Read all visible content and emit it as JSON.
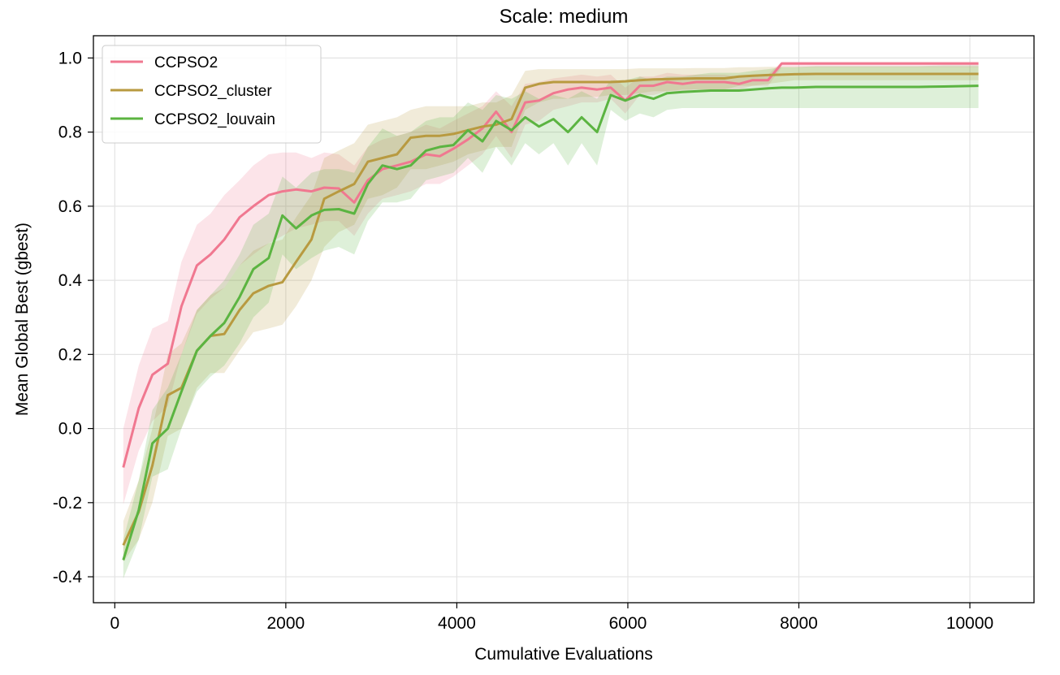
{
  "chart_data": {
    "type": "line",
    "title": "Scale: medium",
    "xlabel": "Cumulative Evaluations",
    "ylabel": "Mean Global Best (gbest)",
    "xlim": [
      -250,
      10750
    ],
    "ylim": [
      -0.47,
      1.06
    ],
    "xticks": [
      0,
      2000,
      4000,
      6000,
      8000,
      10000
    ],
    "yticks": [
      -0.4,
      -0.2,
      0.0,
      0.2,
      0.4,
      0.6,
      0.8,
      1.0
    ],
    "xtick_labels": [
      "0",
      "2000",
      "4000",
      "6000",
      "8000",
      "10000"
    ],
    "ytick_labels": [
      "-0.4",
      "-0.2",
      "0.0",
      "0.2",
      "0.4",
      "0.6",
      "0.8",
      "1.0"
    ],
    "grid": true,
    "legend_position": "top-left",
    "series": [
      {
        "name": "CCPSO2",
        "color": "#f07890",
        "x": [
          100,
          280,
          440,
          620,
          780,
          960,
          1120,
          1280,
          1460,
          1620,
          1800,
          1960,
          2120,
          2300,
          2450,
          2620,
          2800,
          2960,
          3130,
          3300,
          3460,
          3640,
          3800,
          3960,
          4130,
          4300,
          4460,
          4640,
          4800,
          4960,
          5130,
          5300,
          5460,
          5640,
          5800,
          5970,
          6140,
          6300,
          6460,
          6640,
          6800,
          6970,
          7130,
          7300,
          7460,
          7640,
          7800,
          7950,
          8200,
          8500,
          8800,
          9100,
          9400,
          9700,
          10100
        ],
        "y": [
          -0.105,
          0.055,
          0.145,
          0.175,
          0.33,
          0.44,
          0.47,
          0.51,
          0.57,
          0.6,
          0.63,
          0.64,
          0.645,
          0.64,
          0.65,
          0.648,
          0.61,
          0.67,
          0.7,
          0.71,
          0.72,
          0.74,
          0.735,
          0.755,
          0.78,
          0.81,
          0.855,
          0.8,
          0.88,
          0.885,
          0.905,
          0.915,
          0.92,
          0.915,
          0.92,
          0.885,
          0.925,
          0.925,
          0.935,
          0.93,
          0.935,
          0.935,
          0.935,
          0.93,
          0.94,
          0.94,
          0.985,
          0.985,
          0.985,
          0.985,
          0.985,
          0.985,
          0.985,
          0.985,
          0.985
        ],
        "lower": [
          -0.205,
          -0.06,
          0.02,
          0.06,
          0.2,
          0.31,
          0.35,
          0.38,
          0.44,
          0.47,
          0.5,
          0.52,
          0.54,
          0.55,
          0.56,
          0.56,
          0.52,
          0.58,
          0.62,
          0.63,
          0.64,
          0.66,
          0.66,
          0.68,
          0.71,
          0.74,
          0.79,
          0.73,
          0.82,
          0.83,
          0.86,
          0.87,
          0.88,
          0.88,
          0.89,
          0.85,
          0.9,
          0.9,
          0.91,
          0.91,
          0.915,
          0.915,
          0.915,
          0.915,
          0.925,
          0.925,
          0.975,
          0.975,
          0.975,
          0.975,
          0.975,
          0.975,
          0.975,
          0.975,
          0.975
        ],
        "upper": [
          0.0,
          0.17,
          0.27,
          0.29,
          0.45,
          0.55,
          0.58,
          0.63,
          0.67,
          0.71,
          0.74,
          0.745,
          0.745,
          0.73,
          0.745,
          0.74,
          0.71,
          0.76,
          0.78,
          0.79,
          0.8,
          0.82,
          0.81,
          0.83,
          0.85,
          0.87,
          0.91,
          0.87,
          0.93,
          0.935,
          0.945,
          0.95,
          0.955,
          0.95,
          0.955,
          0.92,
          0.95,
          0.95,
          0.96,
          0.955,
          0.955,
          0.955,
          0.955,
          0.95,
          0.955,
          0.955,
          0.99,
          0.99,
          0.99,
          0.99,
          0.99,
          0.99,
          0.99,
          0.99,
          0.99
        ]
      },
      {
        "name": "CCPSO2_cluster",
        "color": "#b89a40",
        "x": [
          100,
          280,
          440,
          620,
          780,
          960,
          1120,
          1280,
          1460,
          1620,
          1800,
          1960,
          2120,
          2300,
          2450,
          2620,
          2800,
          2960,
          3130,
          3300,
          3460,
          3640,
          3800,
          3960,
          4130,
          4300,
          4460,
          4640,
          4800,
          4960,
          5130,
          5300,
          5460,
          5640,
          5800,
          5970,
          6140,
          6300,
          6460,
          6640,
          6800,
          6970,
          7130,
          7300,
          7460,
          7640,
          7800,
          7950,
          8200,
          8500,
          8800,
          9100,
          9400,
          9700,
          10100
        ],
        "y": [
          -0.315,
          -0.225,
          -0.1,
          0.09,
          0.11,
          0.21,
          0.25,
          0.255,
          0.32,
          0.365,
          0.385,
          0.395,
          0.45,
          0.51,
          0.62,
          0.64,
          0.66,
          0.72,
          0.73,
          0.74,
          0.785,
          0.79,
          0.79,
          0.795,
          0.805,
          0.815,
          0.82,
          0.835,
          0.92,
          0.93,
          0.935,
          0.935,
          0.935,
          0.935,
          0.935,
          0.937,
          0.94,
          0.942,
          0.943,
          0.944,
          0.945,
          0.945,
          0.945,
          0.95,
          0.952,
          0.954,
          0.955,
          0.956,
          0.957,
          0.957,
          0.957,
          0.957,
          0.957,
          0.957,
          0.957
        ],
        "lower": [
          -0.36,
          -0.3,
          -0.2,
          -0.02,
          0.0,
          0.11,
          0.15,
          0.15,
          0.21,
          0.26,
          0.27,
          0.28,
          0.33,
          0.4,
          0.49,
          0.53,
          0.55,
          0.62,
          0.63,
          0.65,
          0.7,
          0.7,
          0.71,
          0.72,
          0.74,
          0.75,
          0.76,
          0.76,
          0.86,
          0.88,
          0.89,
          0.89,
          0.895,
          0.895,
          0.9,
          0.9,
          0.905,
          0.91,
          0.91,
          0.915,
          0.915,
          0.915,
          0.915,
          0.925,
          0.925,
          0.93,
          0.935,
          0.94,
          0.94,
          0.94,
          0.94,
          0.94,
          0.94,
          0.94,
          0.94
        ],
        "upper": [
          -0.25,
          -0.14,
          0.0,
          0.2,
          0.23,
          0.32,
          0.36,
          0.38,
          0.44,
          0.48,
          0.5,
          0.51,
          0.57,
          0.63,
          0.73,
          0.75,
          0.77,
          0.82,
          0.83,
          0.84,
          0.86,
          0.87,
          0.87,
          0.87,
          0.87,
          0.88,
          0.88,
          0.9,
          0.965,
          0.97,
          0.97,
          0.97,
          0.97,
          0.97,
          0.97,
          0.97,
          0.972,
          0.972,
          0.972,
          0.972,
          0.973,
          0.973,
          0.973,
          0.975,
          0.975,
          0.976,
          0.976,
          0.976,
          0.976,
          0.976,
          0.976,
          0.976,
          0.976,
          0.976,
          0.976
        ]
      },
      {
        "name": "CCPSO2_louvain",
        "color": "#5bb441",
        "x": [
          100,
          280,
          440,
          620,
          780,
          960,
          1120,
          1280,
          1460,
          1620,
          1800,
          1960,
          2120,
          2300,
          2450,
          2620,
          2800,
          2960,
          3130,
          3300,
          3460,
          3640,
          3800,
          3960,
          4130,
          4300,
          4460,
          4640,
          4800,
          4960,
          5130,
          5300,
          5460,
          5640,
          5800,
          5970,
          6140,
          6300,
          6460,
          6640,
          6800,
          6970,
          7130,
          7300,
          7460,
          7640,
          7800,
          7950,
          8200,
          8500,
          8800,
          9100,
          9400,
          9700,
          10100
        ],
        "y": [
          -0.355,
          -0.22,
          -0.04,
          0.0,
          0.1,
          0.21,
          0.25,
          0.285,
          0.355,
          0.43,
          0.46,
          0.575,
          0.54,
          0.575,
          0.59,
          0.592,
          0.58,
          0.66,
          0.71,
          0.7,
          0.71,
          0.75,
          0.76,
          0.765,
          0.805,
          0.775,
          0.83,
          0.805,
          0.84,
          0.815,
          0.835,
          0.8,
          0.84,
          0.8,
          0.9,
          0.885,
          0.9,
          0.89,
          0.905,
          0.908,
          0.91,
          0.912,
          0.912,
          0.912,
          0.915,
          0.918,
          0.92,
          0.92,
          0.922,
          0.922,
          0.922,
          0.922,
          0.922,
          0.923,
          0.925
        ],
        "lower": [
          -0.405,
          -0.3,
          -0.13,
          -0.11,
          0.0,
          0.1,
          0.14,
          0.17,
          0.23,
          0.3,
          0.34,
          0.47,
          0.43,
          0.46,
          0.48,
          0.49,
          0.47,
          0.56,
          0.61,
          0.61,
          0.62,
          0.67,
          0.68,
          0.69,
          0.73,
          0.69,
          0.76,
          0.71,
          0.77,
          0.74,
          0.77,
          0.71,
          0.77,
          0.71,
          0.86,
          0.83,
          0.85,
          0.84,
          0.86,
          0.865,
          0.865,
          0.865,
          0.865,
          0.865,
          0.865,
          0.865,
          0.865,
          0.865,
          0.865,
          0.865,
          0.865,
          0.865,
          0.865,
          0.865,
          0.865
        ],
        "upper": [
          -0.3,
          -0.14,
          0.05,
          0.11,
          0.2,
          0.32,
          0.36,
          0.4,
          0.47,
          0.55,
          0.58,
          0.68,
          0.65,
          0.69,
          0.7,
          0.7,
          0.69,
          0.76,
          0.81,
          0.79,
          0.8,
          0.83,
          0.84,
          0.84,
          0.88,
          0.86,
          0.9,
          0.89,
          0.91,
          0.89,
          0.9,
          0.89,
          0.91,
          0.89,
          0.94,
          0.94,
          0.95,
          0.94,
          0.95,
          0.95,
          0.955,
          0.96,
          0.96,
          0.96,
          0.965,
          0.97,
          0.975,
          0.975,
          0.978,
          0.978,
          0.978,
          0.978,
          0.978,
          0.98,
          0.98
        ]
      }
    ]
  }
}
